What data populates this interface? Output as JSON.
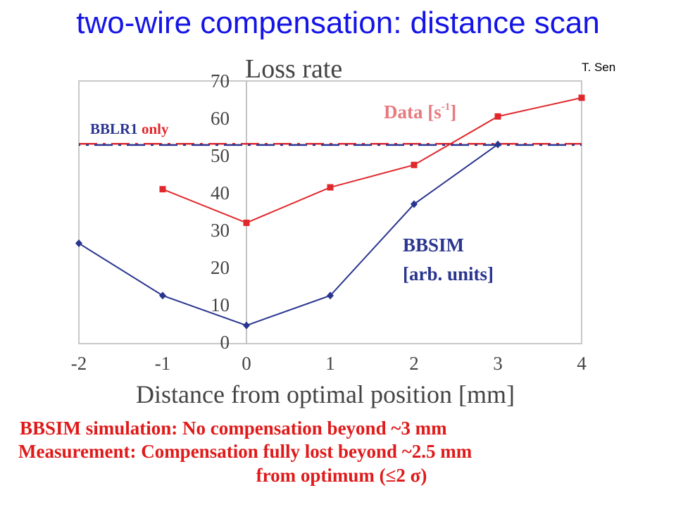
{
  "slide": {
    "title": "two-wire compensation: distance scan",
    "author": "T. Sen",
    "notes": [
      "BBSIM simulation: No compensation beyond ~3 mm",
      "Measurement: Compensation fully lost beyond ~2.5 mm",
      "from optimum (≤2 σ)"
    ]
  },
  "chart_data": {
    "type": "line",
    "title": "Loss rate",
    "xlabel": "Distance from optimal position [mm]",
    "ylabel": "",
    "xlim": [
      -2,
      4
    ],
    "ylim": [
      0,
      70
    ],
    "xticks": [
      -2,
      -1,
      0,
      1,
      2,
      3,
      4
    ],
    "yticks": [
      0,
      10,
      20,
      30,
      40,
      50,
      60,
      70
    ],
    "grid": false,
    "series": [
      {
        "name": "Data [s-1]",
        "label_main": "Data [s",
        "label_sup": "-1",
        "label_end": "]",
        "color": "#e0282c",
        "marker": "square",
        "x": [
          -1,
          0,
          1,
          2,
          3,
          4
        ],
        "y": [
          41,
          32,
          41.5,
          47.5,
          60.5,
          65.5
        ]
      },
      {
        "name": "BBSIM [arb. units]",
        "label_lines": [
          "BBSIM",
          "[arb. units]"
        ],
        "color": "#2a3590",
        "marker": "diamond",
        "x": [
          -2,
          -1,
          0,
          1,
          2,
          3
        ],
        "y": [
          26.5,
          12.5,
          4.5,
          12.5,
          37,
          53
        ]
      }
    ],
    "reference": {
      "name": "BBLR1 only",
      "label_blue": "BBLR1 ",
      "label_red": "only",
      "y": 53,
      "colors": [
        "#2a3590",
        "#e0282c"
      ]
    }
  }
}
